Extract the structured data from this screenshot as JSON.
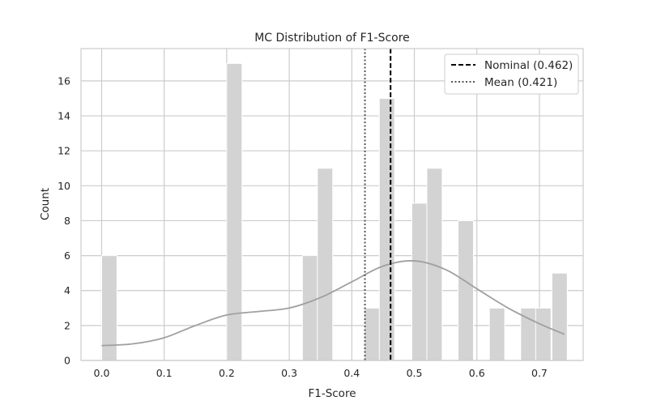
{
  "chart_data": {
    "type": "histogram",
    "title": "MC Distribution of F1-Score",
    "xlabel": "F1-Score",
    "ylabel": "Count",
    "xlim": [
      -0.033,
      0.77
    ],
    "ylim": [
      0,
      17.85
    ],
    "xticks": [
      0.0,
      0.1,
      0.2,
      0.3,
      0.4,
      0.5,
      0.6,
      0.7
    ],
    "yticks": [
      0,
      2,
      4,
      6,
      8,
      10,
      12,
      14,
      16
    ],
    "bin_width": 0.0245,
    "bins": [
      {
        "x0": 0.0,
        "count": 6
      },
      {
        "x0": 0.2,
        "count": 17
      },
      {
        "x0": 0.321,
        "count": 6
      },
      {
        "x0": 0.345,
        "count": 11
      },
      {
        "x0": 0.42,
        "count": 3
      },
      {
        "x0": 0.444,
        "count": 15
      },
      {
        "x0": 0.496,
        "count": 9
      },
      {
        "x0": 0.52,
        "count": 11
      },
      {
        "x0": 0.57,
        "count": 8
      },
      {
        "x0": 0.62,
        "count": 3
      },
      {
        "x0": 0.67,
        "count": 3
      },
      {
        "x0": 0.694,
        "count": 3
      },
      {
        "x0": 0.72,
        "count": 5
      }
    ],
    "kde": {
      "x": [
        0.0,
        0.05,
        0.1,
        0.15,
        0.2,
        0.25,
        0.3,
        0.35,
        0.4,
        0.45,
        0.5,
        0.55,
        0.6,
        0.65,
        0.7,
        0.74
      ],
      "y": [
        0.85,
        0.95,
        1.3,
        2.0,
        2.6,
        2.8,
        3.0,
        3.6,
        4.5,
        5.4,
        5.7,
        5.2,
        4.1,
        3.0,
        2.1,
        1.5
      ]
    },
    "reference_lines": [
      {
        "name": "Nominal (0.462)",
        "x": 0.462,
        "style": "dashed",
        "color": "#000000"
      },
      {
        "name": "Mean (0.421)",
        "x": 0.421,
        "style": "dotted",
        "color": "#555555"
      }
    ],
    "legend": "top-right",
    "grid": true,
    "colors": {
      "bar": "#d3d3d3",
      "kde": "#a0a0a0",
      "grid": "#cccccc",
      "spine": "#cccccc"
    }
  }
}
